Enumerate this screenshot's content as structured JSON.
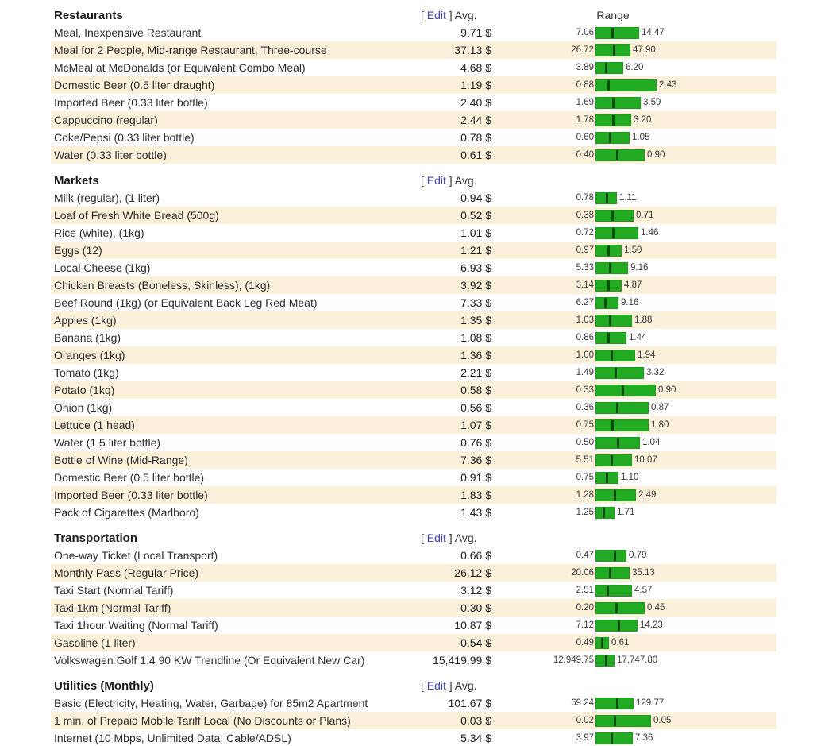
{
  "page": {
    "edit_prefix": "[ ",
    "edit_link_label": "Edit",
    "edit_suffix": " ] Avg.",
    "range_header": "Range",
    "currency_suffix": " $"
  },
  "colors": {
    "bar_green": "#22AB22",
    "bar_border": "#1B9A1B",
    "bar_marker": "#0C4D0C",
    "row_alt_bg": "#FBF1DA",
    "edit_link": "#4343bb"
  },
  "sections": [
    {
      "title": "Restaurants",
      "show_range_header": true,
      "rows": [
        {
          "label": "Meal, Inexpensive Restaurant",
          "avg": "9.71",
          "min": "7.06",
          "max": "14.47"
        },
        {
          "label": "Meal for 2 People, Mid-range Restaurant, Three-course",
          "avg": "37.13",
          "min": "26.72",
          "max": "47.90"
        },
        {
          "label": "McMeal at McDonalds (or Equivalent Combo Meal)",
          "avg": "4.68",
          "min": "3.89",
          "max": "6.20"
        },
        {
          "label": "Domestic Beer (0.5 liter draught)",
          "avg": "1.19",
          "min": "0.88",
          "max": "2.43"
        },
        {
          "label": "Imported Beer (0.33 liter bottle)",
          "avg": "2.40",
          "min": "1.69",
          "max": "3.59"
        },
        {
          "label": "Cappuccino (regular)",
          "avg": "2.44",
          "min": "1.78",
          "max": "3.20"
        },
        {
          "label": "Coke/Pepsi (0.33 liter bottle)",
          "avg": "0.78",
          "min": "0.60",
          "max": "1.05"
        },
        {
          "label": "Water (0.33 liter bottle)",
          "avg": "0.61",
          "min": "0.40",
          "max": "0.90"
        }
      ]
    },
    {
      "title": "Markets",
      "show_range_header": false,
      "rows": [
        {
          "label": "Milk (regular), (1 liter)",
          "avg": "0.94",
          "min": "0.78",
          "max": "1.11"
        },
        {
          "label": "Loaf of Fresh White Bread (500g)",
          "avg": "0.52",
          "min": "0.38",
          "max": "0.71"
        },
        {
          "label": "Rice (white), (1kg)",
          "avg": "1.01",
          "min": "0.72",
          "max": "1.46"
        },
        {
          "label": "Eggs (12)",
          "avg": "1.21",
          "min": "0.97",
          "max": "1.50"
        },
        {
          "label": "Local Cheese (1kg)",
          "avg": "6.93",
          "min": "5.33",
          "max": "9.16"
        },
        {
          "label": "Chicken Breasts (Boneless, Skinless), (1kg)",
          "avg": "3.92",
          "min": "3.14",
          "max": "4.87"
        },
        {
          "label": "Beef Round (1kg) (or Equivalent Back Leg Red Meat)",
          "avg": "7.33",
          "min": "6.27",
          "max": "9.16"
        },
        {
          "label": "Apples (1kg)",
          "avg": "1.35",
          "min": "1.03",
          "max": "1.88"
        },
        {
          "label": "Banana (1kg)",
          "avg": "1.08",
          "min": "0.86",
          "max": "1.44"
        },
        {
          "label": "Oranges (1kg)",
          "avg": "1.36",
          "min": "1.00",
          "max": "1.94"
        },
        {
          "label": "Tomato (1kg)",
          "avg": "2.21",
          "min": "1.49",
          "max": "3.32"
        },
        {
          "label": "Potato (1kg)",
          "avg": "0.58",
          "min": "0.33",
          "max": "0.90"
        },
        {
          "label": "Onion (1kg)",
          "avg": "0.56",
          "min": "0.36",
          "max": "0.87"
        },
        {
          "label": "Lettuce (1 head)",
          "avg": "1.07",
          "min": "0.75",
          "max": "1.80"
        },
        {
          "label": "Water (1.5 liter bottle)",
          "avg": "0.76",
          "min": "0.50",
          "max": "1.04"
        },
        {
          "label": "Bottle of Wine (Mid-Range)",
          "avg": "7.36",
          "min": "5.51",
          "max": "10.07"
        },
        {
          "label": "Domestic Beer (0.5 liter bottle)",
          "avg": "0.91",
          "min": "0.75",
          "max": "1.10"
        },
        {
          "label": "Imported Beer (0.33 liter bottle)",
          "avg": "1.83",
          "min": "1.28",
          "max": "2.49"
        },
        {
          "label": "Pack of Cigarettes (Marlboro)",
          "avg": "1.43",
          "min": "1.25",
          "max": "1.71"
        }
      ]
    },
    {
      "title": "Transportation",
      "show_range_header": false,
      "rows": [
        {
          "label": "One-way Ticket (Local Transport)",
          "avg": "0.66",
          "min": "0.47",
          "max": "0.79"
        },
        {
          "label": "Monthly Pass (Regular Price)",
          "avg": "26.12",
          "min": "20.06",
          "max": "35.13"
        },
        {
          "label": "Taxi Start (Normal Tariff)",
          "avg": "3.12",
          "min": "2.51",
          "max": "4.57"
        },
        {
          "label": "Taxi 1km (Normal Tariff)",
          "avg": "0.30",
          "min": "0.20",
          "max": "0.45"
        },
        {
          "label": "Taxi 1hour Waiting (Normal Tariff)",
          "avg": "10.87",
          "min": "7.12",
          "max": "14.23"
        },
        {
          "label": "Gasoline (1 liter)",
          "avg": "0.54",
          "min": "0.49",
          "max": "0.61"
        },
        {
          "label": "Volkswagen Golf 1.4 90 KW Trendline (Or Equivalent New Car)",
          "avg": "15,419.99",
          "min": "12,949.75",
          "max": "17,747.80"
        }
      ]
    },
    {
      "title": "Utilities (Monthly)",
      "show_range_header": false,
      "rows": [
        {
          "label": "Basic (Electricity, Heating, Water, Garbage) for 85m2 Apartment",
          "avg": "101.67",
          "min": "69.24",
          "max": "129.77"
        },
        {
          "label": "1 min. of Prepaid Mobile Tariff Local (No Discounts or Plans)",
          "avg": "0.03",
          "min": "0.02",
          "max": "0.05"
        },
        {
          "label": "Internet (10 Mbps, Unlimited Data, Cable/ADSL)",
          "avg": "5.34",
          "min": "3.97",
          "max": "7.36"
        }
      ]
    }
  ]
}
